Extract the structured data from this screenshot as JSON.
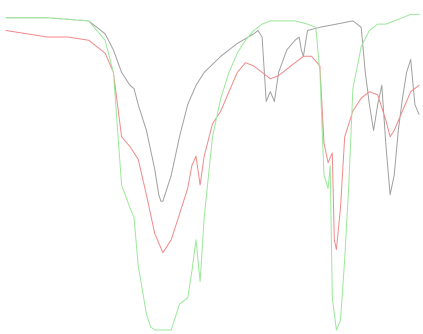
{
  "chart_data": {
    "type": "line",
    "title": "",
    "xlabel": "",
    "ylabel": "",
    "grid": false,
    "xlim": [
      0,
      100
    ],
    "ylim": [
      0,
      100
    ],
    "series": [
      {
        "color": "#a0a0a0",
        "points": [
          [
            0,
            97
          ],
          [
            10,
            97
          ],
          [
            20,
            96
          ],
          [
            24,
            92
          ],
          [
            26,
            87
          ],
          [
            28,
            80
          ],
          [
            30,
            76
          ],
          [
            31,
            75
          ],
          [
            32,
            70
          ],
          [
            34,
            62
          ],
          [
            36,
            50
          ],
          [
            37,
            42
          ],
          [
            37.5,
            40
          ],
          [
            38,
            40
          ],
          [
            40,
            48
          ],
          [
            42,
            60
          ],
          [
            44,
            70
          ],
          [
            46,
            76
          ],
          [
            48,
            80
          ],
          [
            52,
            85
          ],
          [
            56,
            89
          ],
          [
            60,
            92
          ],
          [
            61,
            93
          ],
          [
            62,
            91
          ],
          [
            63,
            71
          ],
          [
            64,
            74
          ],
          [
            65,
            71
          ],
          [
            66,
            80
          ],
          [
            68,
            87
          ],
          [
            70,
            90
          ],
          [
            71,
            91
          ],
          [
            71.5,
            87
          ],
          [
            72,
            85
          ],
          [
            73,
            93
          ],
          [
            76,
            94
          ],
          [
            80,
            95
          ],
          [
            84,
            96
          ],
          [
            86,
            94
          ],
          [
            87,
            80
          ],
          [
            88,
            70
          ],
          [
            89,
            62
          ],
          [
            90,
            70
          ],
          [
            91,
            76
          ],
          [
            92,
            57
          ],
          [
            93,
            42
          ],
          [
            94,
            48
          ],
          [
            95,
            62
          ],
          [
            96,
            72
          ],
          [
            97,
            80
          ],
          [
            98,
            84
          ],
          [
            99,
            70
          ],
          [
            100,
            67
          ]
        ]
      },
      {
        "color": "#f08a8a",
        "points": [
          [
            0,
            93
          ],
          [
            5,
            92
          ],
          [
            10,
            91
          ],
          [
            15,
            91
          ],
          [
            20,
            90
          ],
          [
            24,
            86
          ],
          [
            26,
            80
          ],
          [
            28,
            60
          ],
          [
            30,
            57
          ],
          [
            32,
            53
          ],
          [
            34,
            42
          ],
          [
            36,
            30
          ],
          [
            38,
            24
          ],
          [
            40,
            28
          ],
          [
            42,
            36
          ],
          [
            44,
            44
          ],
          [
            45,
            51
          ],
          [
            46,
            54
          ],
          [
            47,
            45
          ],
          [
            48,
            54
          ],
          [
            50,
            64
          ],
          [
            52,
            68
          ],
          [
            54,
            74
          ],
          [
            56,
            80
          ],
          [
            58,
            83
          ],
          [
            60,
            82
          ],
          [
            62,
            80
          ],
          [
            64,
            78
          ],
          [
            66,
            79
          ],
          [
            68,
            81
          ],
          [
            70,
            83
          ],
          [
            72,
            85
          ],
          [
            74,
            85
          ],
          [
            76,
            82
          ],
          [
            77,
            58
          ],
          [
            78,
            52
          ],
          [
            79,
            55
          ],
          [
            79.5,
            28
          ],
          [
            80,
            25
          ],
          [
            81,
            38
          ],
          [
            82,
            60
          ],
          [
            84,
            68
          ],
          [
            86,
            72
          ],
          [
            88,
            74
          ],
          [
            90,
            73
          ],
          [
            92,
            65
          ],
          [
            93,
            60
          ],
          [
            94,
            62
          ],
          [
            96,
            68
          ],
          [
            98,
            74
          ],
          [
            100,
            76
          ]
        ]
      },
      {
        "color": "#9ae89a",
        "points": [
          [
            0,
            97
          ],
          [
            10,
            97
          ],
          [
            20,
            96
          ],
          [
            24,
            90
          ],
          [
            26,
            80
          ],
          [
            28,
            45
          ],
          [
            30,
            38
          ],
          [
            31,
            35
          ],
          [
            32,
            20
          ],
          [
            34,
            5
          ],
          [
            35,
            1
          ],
          [
            36,
            0
          ],
          [
            38,
            0
          ],
          [
            40,
            0
          ],
          [
            42,
            8
          ],
          [
            44,
            10
          ],
          [
            45,
            18
          ],
          [
            46,
            28
          ],
          [
            47,
            15
          ],
          [
            48,
            35
          ],
          [
            50,
            60
          ],
          [
            52,
            72
          ],
          [
            54,
            80
          ],
          [
            56,
            86
          ],
          [
            58,
            90
          ],
          [
            60,
            93
          ],
          [
            62,
            95
          ],
          [
            64,
            96
          ],
          [
            66,
            96
          ],
          [
            70,
            96
          ],
          [
            73,
            95
          ],
          [
            75,
            94
          ],
          [
            76,
            80
          ],
          [
            77,
            48
          ],
          [
            78,
            44
          ],
          [
            78.5,
            51
          ],
          [
            79,
            10
          ],
          [
            80,
            0
          ],
          [
            81,
            3
          ],
          [
            82,
            22
          ],
          [
            83,
            45
          ],
          [
            84,
            75
          ],
          [
            86,
            88
          ],
          [
            88,
            93
          ],
          [
            90,
            95
          ],
          [
            92,
            95
          ],
          [
            94,
            96
          ],
          [
            96,
            97
          ],
          [
            98,
            98
          ],
          [
            100,
            98
          ]
        ]
      }
    ]
  }
}
